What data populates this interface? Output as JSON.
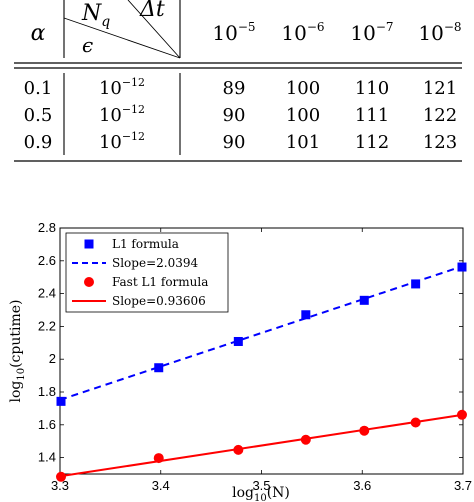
{
  "table": {
    "corner_label": "α",
    "diag_row_label": "N",
    "diag_row_sub": "q",
    "diag_col_label": "Δt",
    "diag_bottom_label": "ϵ",
    "columns": [
      {
        "base": "10",
        "exp": "−5"
      },
      {
        "base": "10",
        "exp": "−6"
      },
      {
        "base": "10",
        "exp": "−7"
      },
      {
        "base": "10",
        "exp": "−8"
      }
    ],
    "rows": [
      {
        "alpha": "0.1",
        "eps_base": "10",
        "eps_exp": "−12",
        "values": [
          "89",
          "100",
          "110",
          "121"
        ]
      },
      {
        "alpha": "0.5",
        "eps_base": "10",
        "eps_exp": "−12",
        "values": [
          "90",
          "100",
          "111",
          "122"
        ]
      },
      {
        "alpha": "0.9",
        "eps_base": "10",
        "eps_exp": "−12",
        "values": [
          "90",
          "101",
          "112",
          "123"
        ]
      }
    ]
  },
  "chart_data": {
    "type": "scatter",
    "xlabel": "log10(N)",
    "ylabel": "log10(cputime)",
    "xlim": [
      3.3,
      3.7
    ],
    "ylim": [
      1.3,
      2.8
    ],
    "xticks": [
      "3.3",
      "3.4",
      "3.5",
      "3.6",
      "3.7"
    ],
    "yticks": [
      "1.4",
      "1.6",
      "1.8",
      "2",
      "2.2",
      "2.4",
      "2.6",
      "2.8"
    ],
    "legend_position": "top-left",
    "grid": false,
    "series": [
      {
        "name": "L1 formula",
        "color": "#0000ff",
        "marker": "square",
        "points": [
          [
            3.301,
            1.743
          ],
          [
            3.398,
            1.948
          ],
          [
            3.477,
            2.108
          ],
          [
            3.544,
            2.271
          ],
          [
            3.602,
            2.359
          ],
          [
            3.653,
            2.459
          ],
          [
            3.699,
            2.562
          ]
        ]
      },
      {
        "name": "Slope=2.0394",
        "color": "#0000ff",
        "line": "dashed",
        "from": [
          3.3,
          1.752
        ],
        "to": [
          3.7,
          2.568
        ]
      },
      {
        "name": "Fast L1 formula",
        "color": "#ff0000",
        "marker": "circle",
        "points": [
          [
            3.301,
            1.283
          ],
          [
            3.398,
            1.397
          ],
          [
            3.477,
            1.447
          ],
          [
            3.544,
            1.509
          ],
          [
            3.602,
            1.564
          ],
          [
            3.653,
            1.614
          ],
          [
            3.699,
            1.661
          ]
        ]
      },
      {
        "name": "Slope=0.93606",
        "color": "#ff0000",
        "line": "solid",
        "from": [
          3.3,
          1.286
        ],
        "to": [
          3.7,
          1.661
        ]
      }
    ]
  }
}
